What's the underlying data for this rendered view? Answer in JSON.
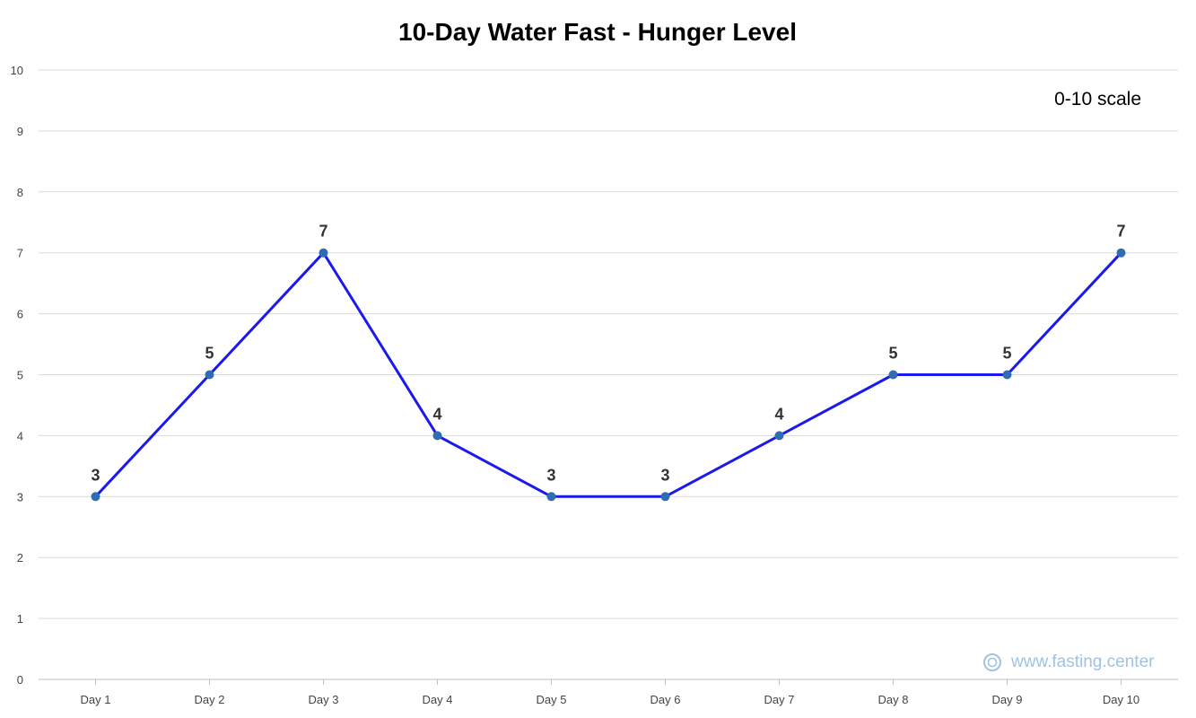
{
  "chart_data": {
    "type": "line",
    "title": "10-Day Water Fast - Hunger Level",
    "annotation": "0-10 scale",
    "categories": [
      "Day 1",
      "Day 2",
      "Day 3",
      "Day 4",
      "Day 5",
      "Day 6",
      "Day 7",
      "Day 8",
      "Day 9",
      "Day 10"
    ],
    "series": [
      {
        "values": [
          3,
          5,
          7,
          4,
          3,
          3,
          4,
          5,
          5,
          7
        ]
      }
    ],
    "ylim": [
      0,
      10
    ],
    "yticks": [
      "0",
      "1",
      "2",
      "3",
      "4",
      "5",
      "6",
      "7",
      "8",
      "9",
      "10"
    ],
    "grid": true,
    "legend": "none",
    "data_labels": true,
    "colors": {
      "line": "#1a1aee",
      "marker": "#2e6db4"
    }
  },
  "watermark": {
    "text": "www.fasting.center",
    "icon": "fasting-center-logo-icon"
  }
}
